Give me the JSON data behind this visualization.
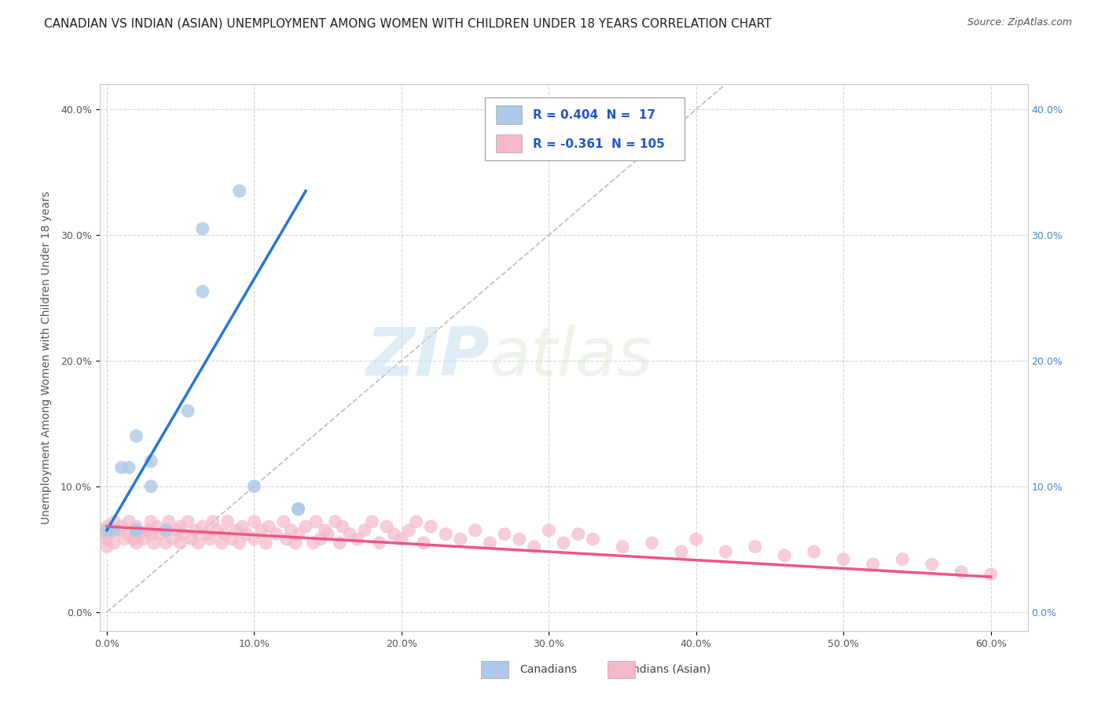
{
  "title": "CANADIAN VS INDIAN (ASIAN) UNEMPLOYMENT AMONG WOMEN WITH CHILDREN UNDER 18 YEARS CORRELATION CHART",
  "source": "Source: ZipAtlas.com",
  "xlim": [
    -0.005,
    0.625
  ],
  "ylim": [
    -0.015,
    0.42
  ],
  "x_tick_vals": [
    0.0,
    0.1,
    0.2,
    0.3,
    0.4,
    0.5,
    0.6
  ],
  "y_tick_vals": [
    0.0,
    0.1,
    0.2,
    0.3,
    0.4
  ],
  "watermark_zip": "ZIP",
  "watermark_atlas": "atlas",
  "legend_line1": "R = 0.404  N =  17",
  "legend_line2": "R = -0.361  N = 105",
  "ylabel": "Unemployment Among Women with Children Under 18 years",
  "canadian_fill": "#adc8e8",
  "indian_fill": "#f5b8c8",
  "canadian_line_color": "#2277dd",
  "indian_line_color": "#ee5588",
  "legend_text_color": "#2255cc",
  "right_tick_color": "#4488cc",
  "grid_color": "#cccccc",
  "background_color": "#ffffff",
  "canadians_x": [
    0.0,
    0.005,
    0.01,
    0.015,
    0.02,
    0.02,
    0.02,
    0.03,
    0.03,
    0.04,
    0.055,
    0.065,
    0.065,
    0.09,
    0.1,
    0.13,
    0.13
  ],
  "canadians_y": [
    0.065,
    0.065,
    0.115,
    0.115,
    0.065,
    0.065,
    0.14,
    0.1,
    0.12,
    0.065,
    0.16,
    0.255,
    0.305,
    0.335,
    0.1,
    0.082,
    0.082
  ],
  "indians_x": [
    0.0,
    0.0,
    0.0,
    0.0,
    0.005,
    0.005,
    0.008,
    0.01,
    0.012,
    0.015,
    0.015,
    0.018,
    0.02,
    0.02,
    0.02,
    0.022,
    0.025,
    0.028,
    0.03,
    0.03,
    0.032,
    0.034,
    0.036,
    0.04,
    0.04,
    0.042,
    0.045,
    0.048,
    0.05,
    0.05,
    0.052,
    0.055,
    0.058,
    0.06,
    0.062,
    0.065,
    0.068,
    0.07,
    0.072,
    0.075,
    0.078,
    0.08,
    0.082,
    0.085,
    0.088,
    0.09,
    0.092,
    0.095,
    0.1,
    0.1,
    0.105,
    0.108,
    0.11,
    0.115,
    0.12,
    0.122,
    0.125,
    0.128,
    0.13,
    0.135,
    0.14,
    0.142,
    0.145,
    0.148,
    0.15,
    0.155,
    0.158,
    0.16,
    0.165,
    0.17,
    0.175,
    0.18,
    0.185,
    0.19,
    0.195,
    0.2,
    0.205,
    0.21,
    0.215,
    0.22,
    0.23,
    0.24,
    0.25,
    0.26,
    0.27,
    0.28,
    0.29,
    0.3,
    0.31,
    0.32,
    0.33,
    0.35,
    0.37,
    0.39,
    0.4,
    0.42,
    0.44,
    0.46,
    0.48,
    0.5,
    0.52,
    0.54,
    0.56,
    0.58,
    0.6
  ],
  "indians_y": [
    0.062,
    0.068,
    0.058,
    0.052,
    0.055,
    0.072,
    0.065,
    0.068,
    0.058,
    0.062,
    0.072,
    0.058,
    0.065,
    0.055,
    0.068,
    0.062,
    0.058,
    0.065,
    0.062,
    0.072,
    0.055,
    0.068,
    0.062,
    0.065,
    0.055,
    0.072,
    0.058,
    0.065,
    0.068,
    0.055,
    0.062,
    0.072,
    0.058,
    0.065,
    0.055,
    0.068,
    0.062,
    0.058,
    0.072,
    0.065,
    0.055,
    0.062,
    0.072,
    0.058,
    0.065,
    0.055,
    0.068,
    0.062,
    0.072,
    0.058,
    0.065,
    0.055,
    0.068,
    0.062,
    0.072,
    0.058,
    0.065,
    0.055,
    0.062,
    0.068,
    0.055,
    0.072,
    0.058,
    0.065,
    0.062,
    0.072,
    0.055,
    0.068,
    0.062,
    0.058,
    0.065,
    0.072,
    0.055,
    0.068,
    0.062,
    0.058,
    0.065,
    0.072,
    0.055,
    0.068,
    0.062,
    0.058,
    0.065,
    0.055,
    0.062,
    0.058,
    0.052,
    0.065,
    0.055,
    0.062,
    0.058,
    0.052,
    0.055,
    0.048,
    0.058,
    0.048,
    0.052,
    0.045,
    0.048,
    0.042,
    0.038,
    0.042,
    0.038,
    0.032,
    0.03
  ],
  "title_fontsize": 11,
  "tick_fontsize": 9,
  "axis_label_fontsize": 10,
  "legend_fontsize": 11
}
